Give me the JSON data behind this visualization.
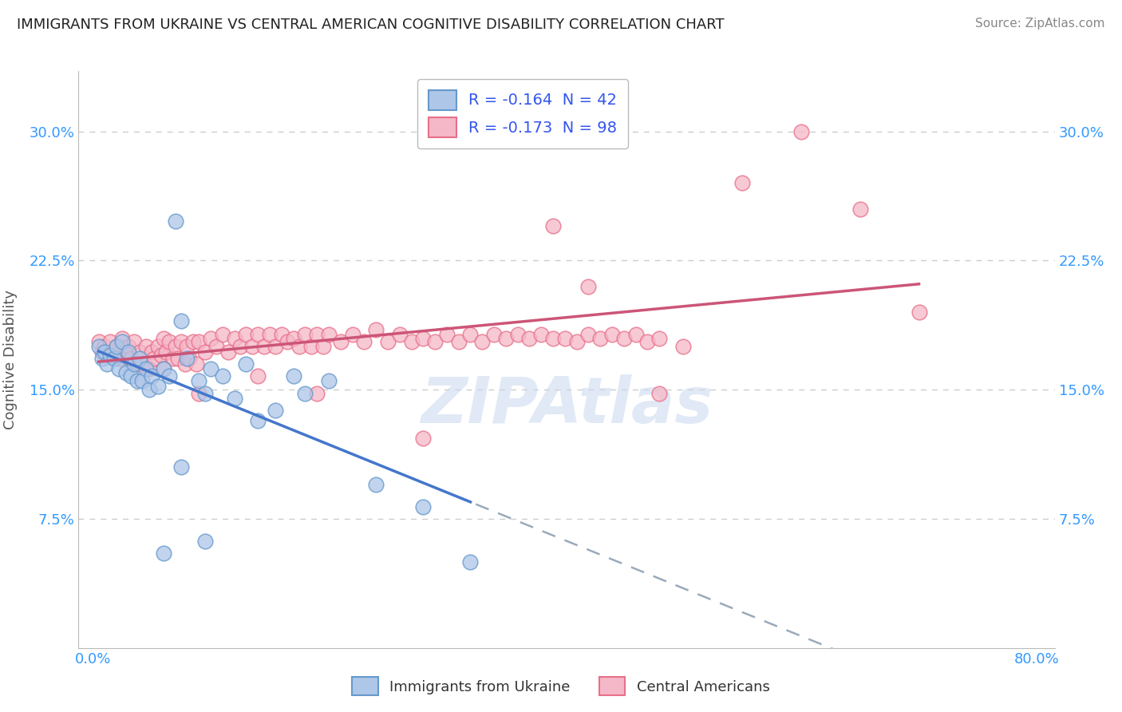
{
  "title": "IMMIGRANTS FROM UKRAINE VS CENTRAL AMERICAN COGNITIVE DISABILITY CORRELATION CHART",
  "source": "Source: ZipAtlas.com",
  "ylabel": "Cognitive Disability",
  "ukraine_color": "#aec6e8",
  "ukraine_edge": "#6699cc",
  "central_color": "#f5b8c8",
  "central_edge": "#e8708a",
  "ukraine_R": -0.164,
  "ukraine_N": 42,
  "central_R": -0.173,
  "central_N": 98,
  "legend_ukraine_label": "R = -0.164  N = 42",
  "legend_central_label": "R = -0.173  N = 98",
  "ukraine_scatter_x": [
    0.005,
    0.008,
    0.01,
    0.012,
    0.015,
    0.018,
    0.02,
    0.022,
    0.025,
    0.028,
    0.03,
    0.032,
    0.035,
    0.038,
    0.04,
    0.042,
    0.045,
    0.048,
    0.05,
    0.055,
    0.06,
    0.065,
    0.07,
    0.075,
    0.08,
    0.09,
    0.095,
    0.1,
    0.11,
    0.12,
    0.13,
    0.14,
    0.155,
    0.17,
    0.18,
    0.06,
    0.075,
    0.095,
    0.2,
    0.24,
    0.28,
    0.32
  ],
  "ukraine_scatter_y": [
    0.175,
    0.168,
    0.172,
    0.165,
    0.17,
    0.168,
    0.175,
    0.162,
    0.178,
    0.16,
    0.172,
    0.158,
    0.165,
    0.155,
    0.168,
    0.155,
    0.162,
    0.15,
    0.158,
    0.152,
    0.162,
    0.158,
    0.248,
    0.19,
    0.168,
    0.155,
    0.148,
    0.162,
    0.158,
    0.145,
    0.165,
    0.132,
    0.138,
    0.158,
    0.148,
    0.055,
    0.105,
    0.062,
    0.155,
    0.095,
    0.082,
    0.05
  ],
  "central_scatter_x": [
    0.005,
    0.008,
    0.01,
    0.012,
    0.015,
    0.018,
    0.02,
    0.022,
    0.025,
    0.028,
    0.03,
    0.032,
    0.035,
    0.038,
    0.04,
    0.042,
    0.045,
    0.048,
    0.05,
    0.052,
    0.055,
    0.058,
    0.06,
    0.062,
    0.065,
    0.068,
    0.07,
    0.072,
    0.075,
    0.078,
    0.08,
    0.082,
    0.085,
    0.088,
    0.09,
    0.095,
    0.1,
    0.105,
    0.11,
    0.115,
    0.12,
    0.125,
    0.13,
    0.135,
    0.14,
    0.145,
    0.15,
    0.155,
    0.16,
    0.165,
    0.17,
    0.175,
    0.18,
    0.185,
    0.19,
    0.195,
    0.2,
    0.21,
    0.22,
    0.23,
    0.24,
    0.25,
    0.26,
    0.27,
    0.28,
    0.29,
    0.3,
    0.31,
    0.32,
    0.33,
    0.34,
    0.35,
    0.36,
    0.37,
    0.38,
    0.39,
    0.4,
    0.41,
    0.42,
    0.43,
    0.44,
    0.45,
    0.46,
    0.47,
    0.48,
    0.5,
    0.39,
    0.42,
    0.55,
    0.6,
    0.65,
    0.7,
    0.48,
    0.28,
    0.19,
    0.14,
    0.09,
    0.06
  ],
  "central_scatter_y": [
    0.178,
    0.172,
    0.175,
    0.17,
    0.178,
    0.172,
    0.175,
    0.168,
    0.18,
    0.172,
    0.175,
    0.168,
    0.178,
    0.165,
    0.172,
    0.165,
    0.175,
    0.162,
    0.172,
    0.168,
    0.175,
    0.17,
    0.18,
    0.172,
    0.178,
    0.168,
    0.175,
    0.168,
    0.178,
    0.165,
    0.175,
    0.168,
    0.178,
    0.165,
    0.178,
    0.172,
    0.18,
    0.175,
    0.182,
    0.172,
    0.18,
    0.175,
    0.182,
    0.175,
    0.182,
    0.175,
    0.182,
    0.175,
    0.182,
    0.178,
    0.18,
    0.175,
    0.182,
    0.175,
    0.182,
    0.175,
    0.182,
    0.178,
    0.182,
    0.178,
    0.185,
    0.178,
    0.182,
    0.178,
    0.18,
    0.178,
    0.182,
    0.178,
    0.182,
    0.178,
    0.182,
    0.18,
    0.182,
    0.18,
    0.182,
    0.18,
    0.18,
    0.178,
    0.182,
    0.18,
    0.182,
    0.18,
    0.182,
    0.178,
    0.18,
    0.175,
    0.245,
    0.21,
    0.27,
    0.3,
    0.255,
    0.195,
    0.148,
    0.122,
    0.148,
    0.158,
    0.148,
    0.162
  ],
  "watermark_text": "ZIPAtlas",
  "bg_color": "#ffffff",
  "grid_color": "#cccccc",
  "title_color": "#222222",
  "axis_label_color": "#555555",
  "tick_color": "#3399ff",
  "ukraine_line_color": "#4477cc",
  "central_line_color": "#cc5577",
  "dashed_line_color": "#99aabb"
}
